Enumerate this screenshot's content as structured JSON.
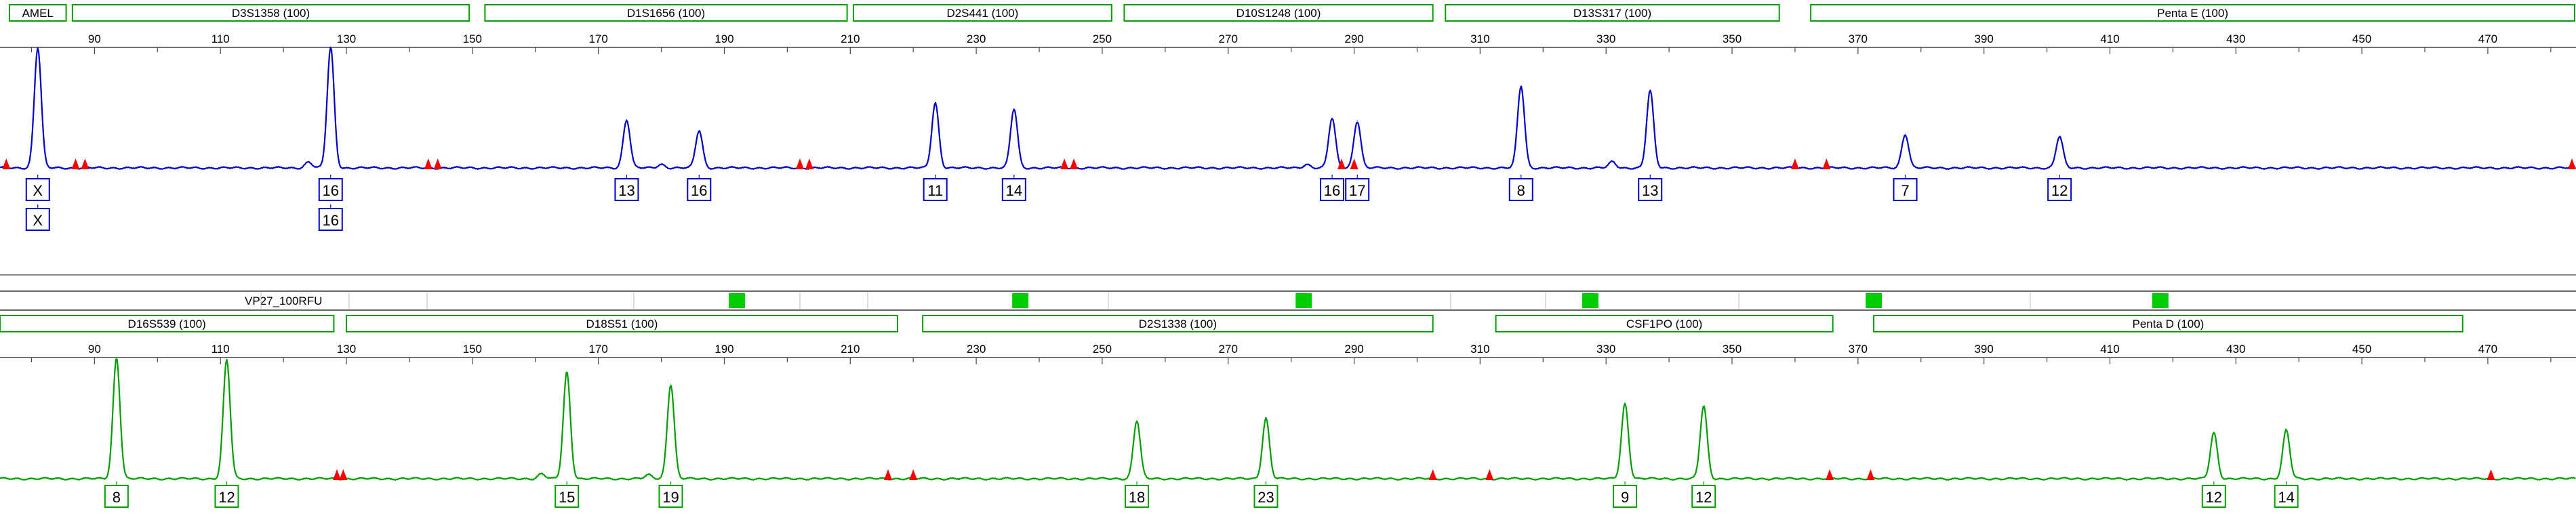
{
  "app": {
    "sample_name": "VP27_100RFU"
  },
  "colors": {
    "blue_dye": "#0000cc",
    "green_dye": "#00a000",
    "marker_outline": "#00a000",
    "bin_fill": "#00cc00",
    "artifact": "#ff0000",
    "axis": "#444444"
  },
  "chart_data": [
    {
      "type": "line",
      "dye": "blue",
      "xlim": [
        75,
        484
      ],
      "ticks": [
        90,
        110,
        130,
        150,
        170,
        190,
        210,
        230,
        250,
        270,
        290,
        310,
        330,
        350,
        370,
        390,
        410,
        430,
        450,
        470
      ],
      "markers": [
        {
          "label": "AMEL",
          "start": 76.5,
          "end": 85.5
        },
        {
          "label": "D3S1358 (100)",
          "start": 86.5,
          "end": 149.5
        },
        {
          "label": "D1S1656 (100)",
          "start": 152,
          "end": 209.5
        },
        {
          "label": "D2S441 (100)",
          "start": 210.5,
          "end": 251.5
        },
        {
          "label": "D10S1248 (100)",
          "start": 253.5,
          "end": 302.5
        },
        {
          "label": "D13S317 (100)",
          "start": 304.5,
          "end": 357.5
        },
        {
          "label": "Penta E (100)",
          "start": 362.5,
          "end": 484
        }
      ],
      "peaks": [
        {
          "size": 81,
          "height": 100
        },
        {
          "size": 127.5,
          "height": 100
        },
        {
          "size": 174.5,
          "height": 40
        },
        {
          "size": 186,
          "height": 31
        },
        {
          "size": 223.5,
          "height": 54
        },
        {
          "size": 236,
          "height": 49
        },
        {
          "size": 286.5,
          "height": 41
        },
        {
          "size": 290.5,
          "height": 39
        },
        {
          "size": 316.5,
          "height": 68
        },
        {
          "size": 337,
          "height": 64
        },
        {
          "size": 377.5,
          "height": 28
        },
        {
          "size": 402,
          "height": 26
        },
        {
          "size": 124,
          "height": 5
        },
        {
          "size": 180,
          "height": 3
        },
        {
          "size": 282.5,
          "height": 3
        },
        {
          "size": 331,
          "height": 5
        }
      ],
      "artifacts": [
        76,
        87,
        88.5,
        143,
        144.5,
        202,
        203.5,
        244,
        245.5,
        288,
        290,
        360,
        365,
        483.5
      ],
      "calls": [
        {
          "size": 81,
          "values": [
            "X",
            "X"
          ]
        },
        {
          "size": 127.5,
          "values": [
            "16",
            "16"
          ]
        },
        {
          "size": 174.5,
          "values": [
            "13"
          ]
        },
        {
          "size": 186,
          "values": [
            "16"
          ]
        },
        {
          "size": 223.5,
          "values": [
            "11"
          ]
        },
        {
          "size": 236,
          "values": [
            "14"
          ]
        },
        {
          "size": 286.5,
          "values": [
            "16"
          ]
        },
        {
          "size": 290.5,
          "values": [
            "17"
          ]
        },
        {
          "size": 316.5,
          "values": [
            "8"
          ]
        },
        {
          "size": 337,
          "values": [
            "13"
          ]
        },
        {
          "size": 377.5,
          "values": [
            "7"
          ]
        },
        {
          "size": 402,
          "values": [
            "12"
          ]
        }
      ]
    },
    {
      "type": "line",
      "dye": "green",
      "xlim": [
        75,
        484
      ],
      "ticks": [
        90,
        110,
        130,
        150,
        170,
        190,
        210,
        230,
        250,
        270,
        290,
        310,
        330,
        350,
        370,
        390,
        410,
        430,
        450,
        470
      ],
      "bins": [
        192,
        237,
        282,
        327.5,
        372.5,
        418
      ],
      "markers": [
        {
          "label": "D16S539 (100)",
          "start": 75,
          "end": 128
        },
        {
          "label": "D18S51 (100)",
          "start": 130,
          "end": 217.5
        },
        {
          "label": "D2S1338 (100)",
          "start": 221.5,
          "end": 302.5
        },
        {
          "label": "CSF1PO (100)",
          "start": 312.5,
          "end": 366
        },
        {
          "label": "Penta D (100)",
          "start": 372.5,
          "end": 466
        }
      ],
      "peaks": [
        {
          "size": 93.5,
          "height": 100
        },
        {
          "size": 111,
          "height": 98
        },
        {
          "size": 165,
          "height": 88
        },
        {
          "size": 181.5,
          "height": 78
        },
        {
          "size": 255.5,
          "height": 48
        },
        {
          "size": 276,
          "height": 50
        },
        {
          "size": 333,
          "height": 62
        },
        {
          "size": 345.5,
          "height": 60
        },
        {
          "size": 426.5,
          "height": 38
        },
        {
          "size": 438,
          "height": 40
        },
        {
          "size": 161,
          "height": 4
        },
        {
          "size": 178,
          "height": 3
        }
      ],
      "artifacts": [
        128.5,
        129.5,
        216,
        220,
        302.5,
        311.5,
        365.5,
        372,
        470.5
      ],
      "calls": [
        {
          "size": 93.5,
          "values": [
            "8"
          ]
        },
        {
          "size": 111,
          "values": [
            "12"
          ]
        },
        {
          "size": 165,
          "values": [
            "15"
          ]
        },
        {
          "size": 181.5,
          "values": [
            "19"
          ]
        },
        {
          "size": 255.5,
          "values": [
            "18"
          ]
        },
        {
          "size": 276,
          "values": [
            "23"
          ]
        },
        {
          "size": 333,
          "values": [
            "9"
          ]
        },
        {
          "size": 345.5,
          "values": [
            "12"
          ]
        },
        {
          "size": 426.5,
          "values": [
            "12"
          ]
        },
        {
          "size": 438,
          "values": [
            "14"
          ]
        }
      ]
    }
  ]
}
